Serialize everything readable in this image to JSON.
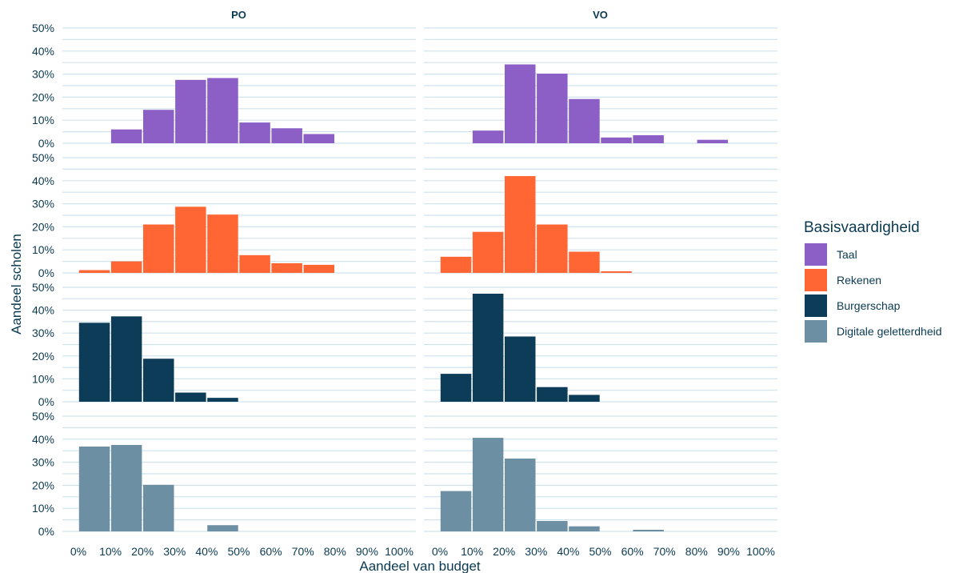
{
  "chart_data": {
    "type": "bar",
    "xlabel": "Aandeel van budget",
    "ylabel": "Aandeel scholen",
    "x_ticks": [
      "0%",
      "10%",
      "20%",
      "30%",
      "40%",
      "50%",
      "60%",
      "70%",
      "80%",
      "90%",
      "100%"
    ],
    "y_ticks": [
      "0%",
      "10%",
      "20%",
      "30%",
      "40%",
      "50%"
    ],
    "ylim": [
      0,
      50
    ],
    "xlim": [
      0,
      100
    ],
    "bin_width": 10,
    "bin_starts": [
      0,
      10,
      20,
      30,
      40,
      50,
      60,
      70,
      80,
      90
    ],
    "facets": [
      "PO",
      "VO"
    ],
    "legend": {
      "title": "Basisvaardigheid",
      "placement": "right"
    },
    "series": [
      {
        "name": "Taal",
        "color": "#8b5fc6",
        "values": {
          "PO": [
            0,
            6,
            14.5,
            27.5,
            28.3,
            9,
            6.5,
            4,
            0,
            0
          ],
          "VO": [
            0,
            5.5,
            34.2,
            30.2,
            19.2,
            2.5,
            3.5,
            0,
            1.5,
            0
          ]
        }
      },
      {
        "name": "Rekenen",
        "color": "#ff6633",
        "values": {
          "PO": [
            1.2,
            5,
            21,
            28.7,
            25.3,
            7.7,
            4.2,
            3.5,
            0,
            0
          ],
          "VO": [
            7,
            17.8,
            42,
            21,
            9.2,
            0.7,
            0,
            0,
            0,
            0
          ]
        }
      },
      {
        "name": "Burgerschap",
        "color": "#0c3c58",
        "values": {
          "PO": [
            34.5,
            37.3,
            18.8,
            4,
            1.7,
            0,
            0,
            0,
            0,
            0
          ],
          "VO": [
            12.2,
            47.2,
            28.5,
            6.4,
            3,
            0,
            0,
            0,
            0,
            0
          ]
        }
      },
      {
        "name": "Digitale geletterdheid",
        "color": "#6d8fa3",
        "values": {
          "PO": [
            36.8,
            37.5,
            20.2,
            0,
            2.7,
            0,
            0,
            0,
            0,
            0
          ],
          "VO": [
            17.5,
            40.6,
            31.6,
            4.5,
            2.2,
            0,
            0.7,
            0,
            0,
            0
          ]
        }
      }
    ]
  }
}
